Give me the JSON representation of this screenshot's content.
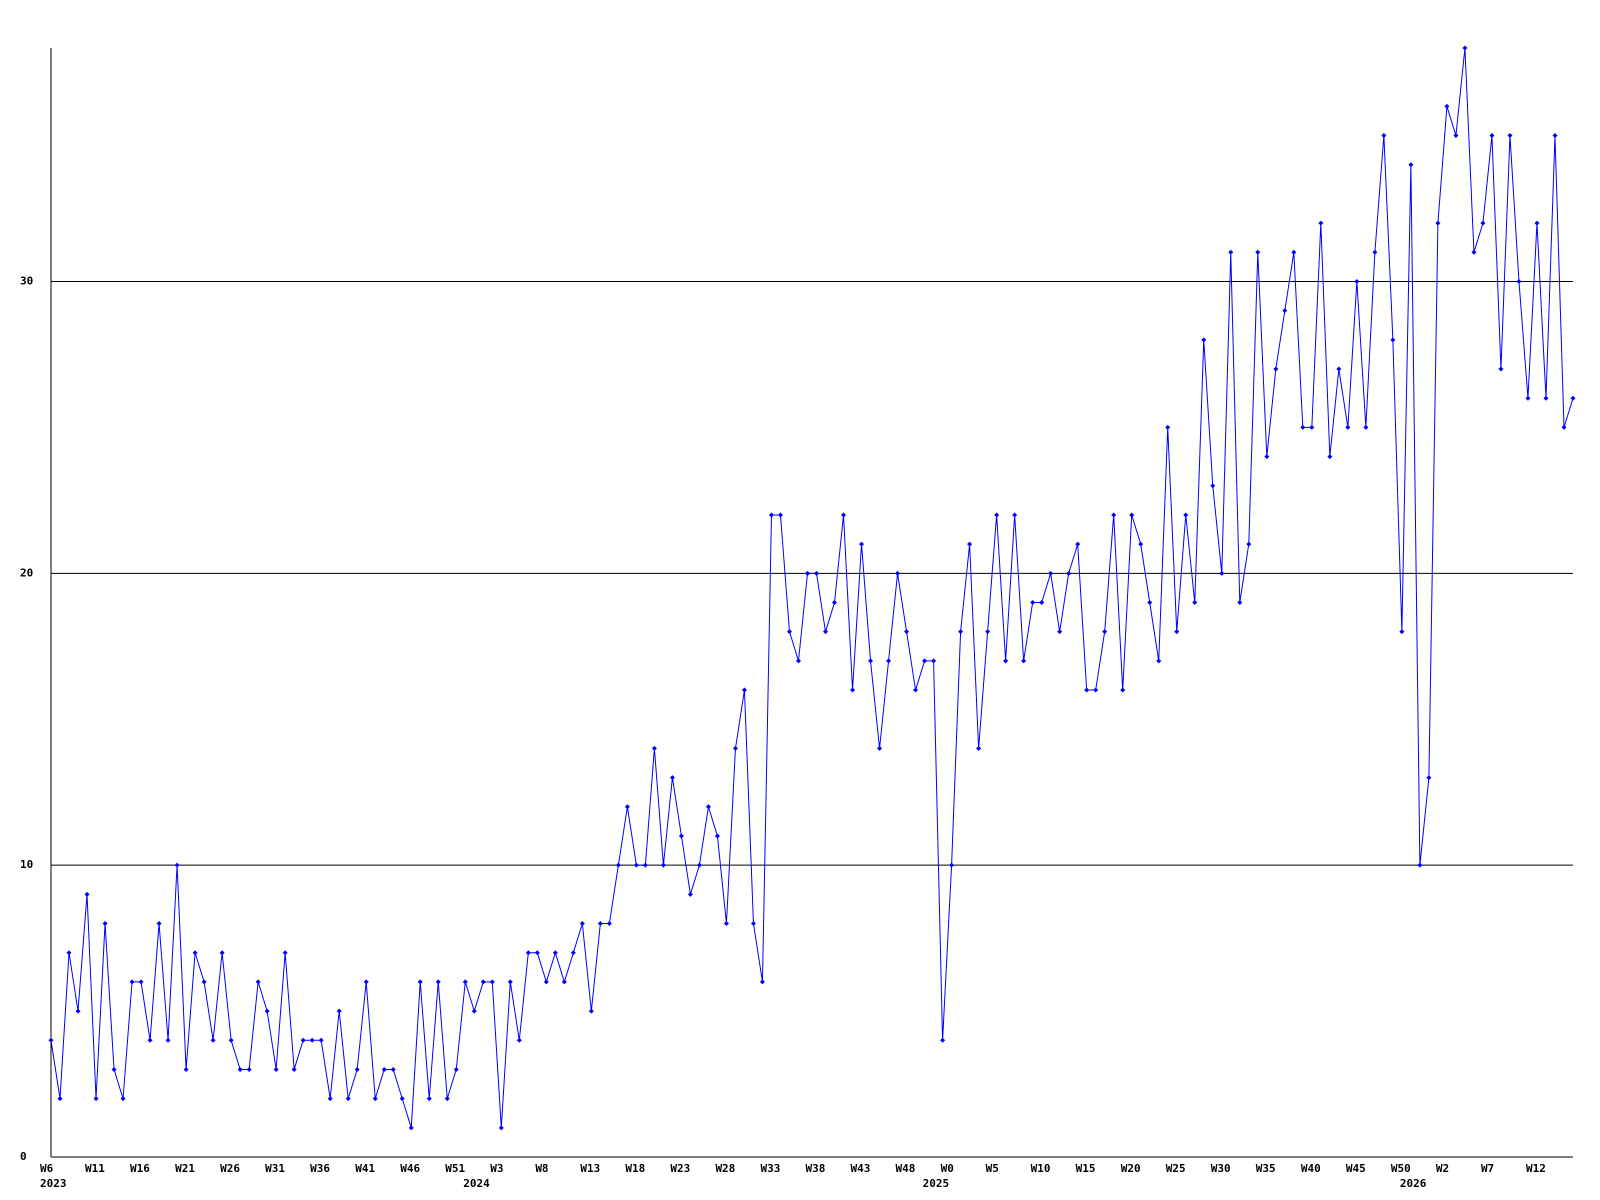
{
  "chart_data": {
    "type": "line",
    "categories": [
      "W6",
      null,
      null,
      null,
      null,
      "W11",
      null,
      null,
      null,
      null,
      "W16",
      null,
      null,
      null,
      null,
      "W21",
      null,
      null,
      null,
      null,
      "W26",
      null,
      null,
      null,
      null,
      "W31",
      null,
      null,
      null,
      null,
      "W36",
      null,
      null,
      null,
      null,
      "W41",
      null,
      null,
      null,
      null,
      "W46",
      null,
      null,
      null,
      null,
      "W51",
      null,
      null,
      null,
      null,
      "W3",
      null,
      null,
      null,
      null,
      "W8",
      null,
      null,
      null,
      null,
      "W13",
      null,
      null,
      null,
      null,
      "W18",
      null,
      null,
      null,
      null,
      "W23",
      null,
      null,
      null,
      null,
      "W28",
      null,
      null,
      null,
      null,
      "W33",
      null,
      null,
      null,
      null,
      "W38",
      null,
      null,
      null,
      null,
      "W43",
      null,
      null,
      null,
      null,
      "W48",
      null,
      null,
      null,
      null,
      "W0",
      null,
      null,
      null,
      null,
      "W5",
      null,
      null,
      null,
      null,
      "W10",
      null,
      null,
      null,
      null,
      "W15",
      null,
      null,
      null,
      null,
      "W20",
      null,
      null,
      null,
      null,
      "W25",
      null,
      null,
      null,
      null,
      "W30",
      null,
      null,
      null,
      null,
      "W35",
      null,
      null,
      null,
      null,
      "W40",
      null,
      null,
      null,
      null,
      "W45",
      null,
      null,
      null,
      null,
      "W50",
      null,
      null,
      null,
      null,
      "W2",
      null,
      null,
      null,
      null,
      "W7",
      null,
      null,
      null,
      null,
      "W12",
      null,
      null,
      null,
      null
    ],
    "years": [
      "2023",
      null,
      null,
      null,
      null,
      null,
      null,
      null,
      null,
      null,
      null,
      null,
      null,
      null,
      null,
      null,
      null,
      null,
      null,
      null,
      null,
      null,
      null,
      null,
      null,
      null,
      null,
      null,
      null,
      null,
      null,
      null,
      null,
      null,
      null,
      null,
      null,
      null,
      null,
      null,
      null,
      null,
      null,
      null,
      null,
      null,
      null,
      "2024",
      null,
      null,
      null,
      null,
      null,
      null,
      null,
      null,
      null,
      null,
      null,
      null,
      null,
      null,
      null,
      null,
      null,
      null,
      null,
      null,
      null,
      null,
      null,
      null,
      null,
      null,
      null,
      null,
      null,
      null,
      null,
      null,
      null,
      null,
      null,
      null,
      null,
      null,
      null,
      null,
      null,
      null,
      null,
      null,
      null,
      null,
      null,
      null,
      null,
      null,
      "2025",
      null,
      null,
      null,
      null,
      null,
      null,
      null,
      null,
      null,
      null,
      null,
      null,
      null,
      null,
      null,
      null,
      null,
      null,
      null,
      null,
      null,
      null,
      null,
      null,
      null,
      null,
      null,
      null,
      null,
      null,
      null,
      null,
      null,
      null,
      null,
      null,
      null,
      null,
      null,
      null,
      null,
      null,
      null,
      null,
      null,
      null,
      null,
      null,
      null,
      null,
      null,
      null,
      "2026",
      null,
      null,
      null,
      null,
      null,
      null,
      null,
      null,
      null,
      null,
      null,
      null,
      null,
      null,
      null,
      null
    ],
    "values": [
      4,
      2,
      7,
      5,
      9,
      2,
      8,
      3,
      2,
      6,
      6,
      4,
      8,
      4,
      10,
      3,
      7,
      6,
      4,
      7,
      4,
      3,
      3,
      6,
      5,
      3,
      7,
      3,
      4,
      4,
      4,
      2,
      5,
      2,
      3,
      6,
      2,
      3,
      3,
      2,
      1,
      6,
      2,
      6,
      2,
      3,
      6,
      5,
      6,
      6,
      1,
      6,
      4,
      7,
      7,
      6,
      7,
      6,
      7,
      8,
      5,
      8,
      8,
      10,
      12,
      10,
      10,
      14,
      10,
      13,
      11,
      9,
      10,
      12,
      11,
      8,
      14,
      16,
      8,
      6,
      22,
      22,
      18,
      17,
      20,
      20,
      18,
      19,
      22,
      16,
      21,
      17,
      14,
      17,
      20,
      18,
      16,
      17,
      17,
      4,
      10,
      18,
      21,
      14,
      18,
      22,
      17,
      22,
      17,
      19,
      19,
      20,
      18,
      20,
      21,
      16,
      16,
      18,
      22,
      16,
      22,
      21,
      19,
      17,
      25,
      18,
      22,
      19,
      28,
      23,
      20,
      31,
      19,
      21,
      31,
      24,
      27,
      29,
      31,
      25,
      25,
      32,
      24,
      27,
      25,
      30,
      25,
      31,
      35,
      28,
      18,
      34,
      10,
      13,
      32,
      36,
      35,
      38,
      31,
      32,
      35,
      27,
      35,
      30,
      26,
      32,
      26,
      35,
      25,
      26
    ],
    "color": "#0000ff",
    "ylim": [
      0,
      38
    ],
    "yticks": [
      0,
      10,
      20,
      30
    ],
    "grid": true
  }
}
